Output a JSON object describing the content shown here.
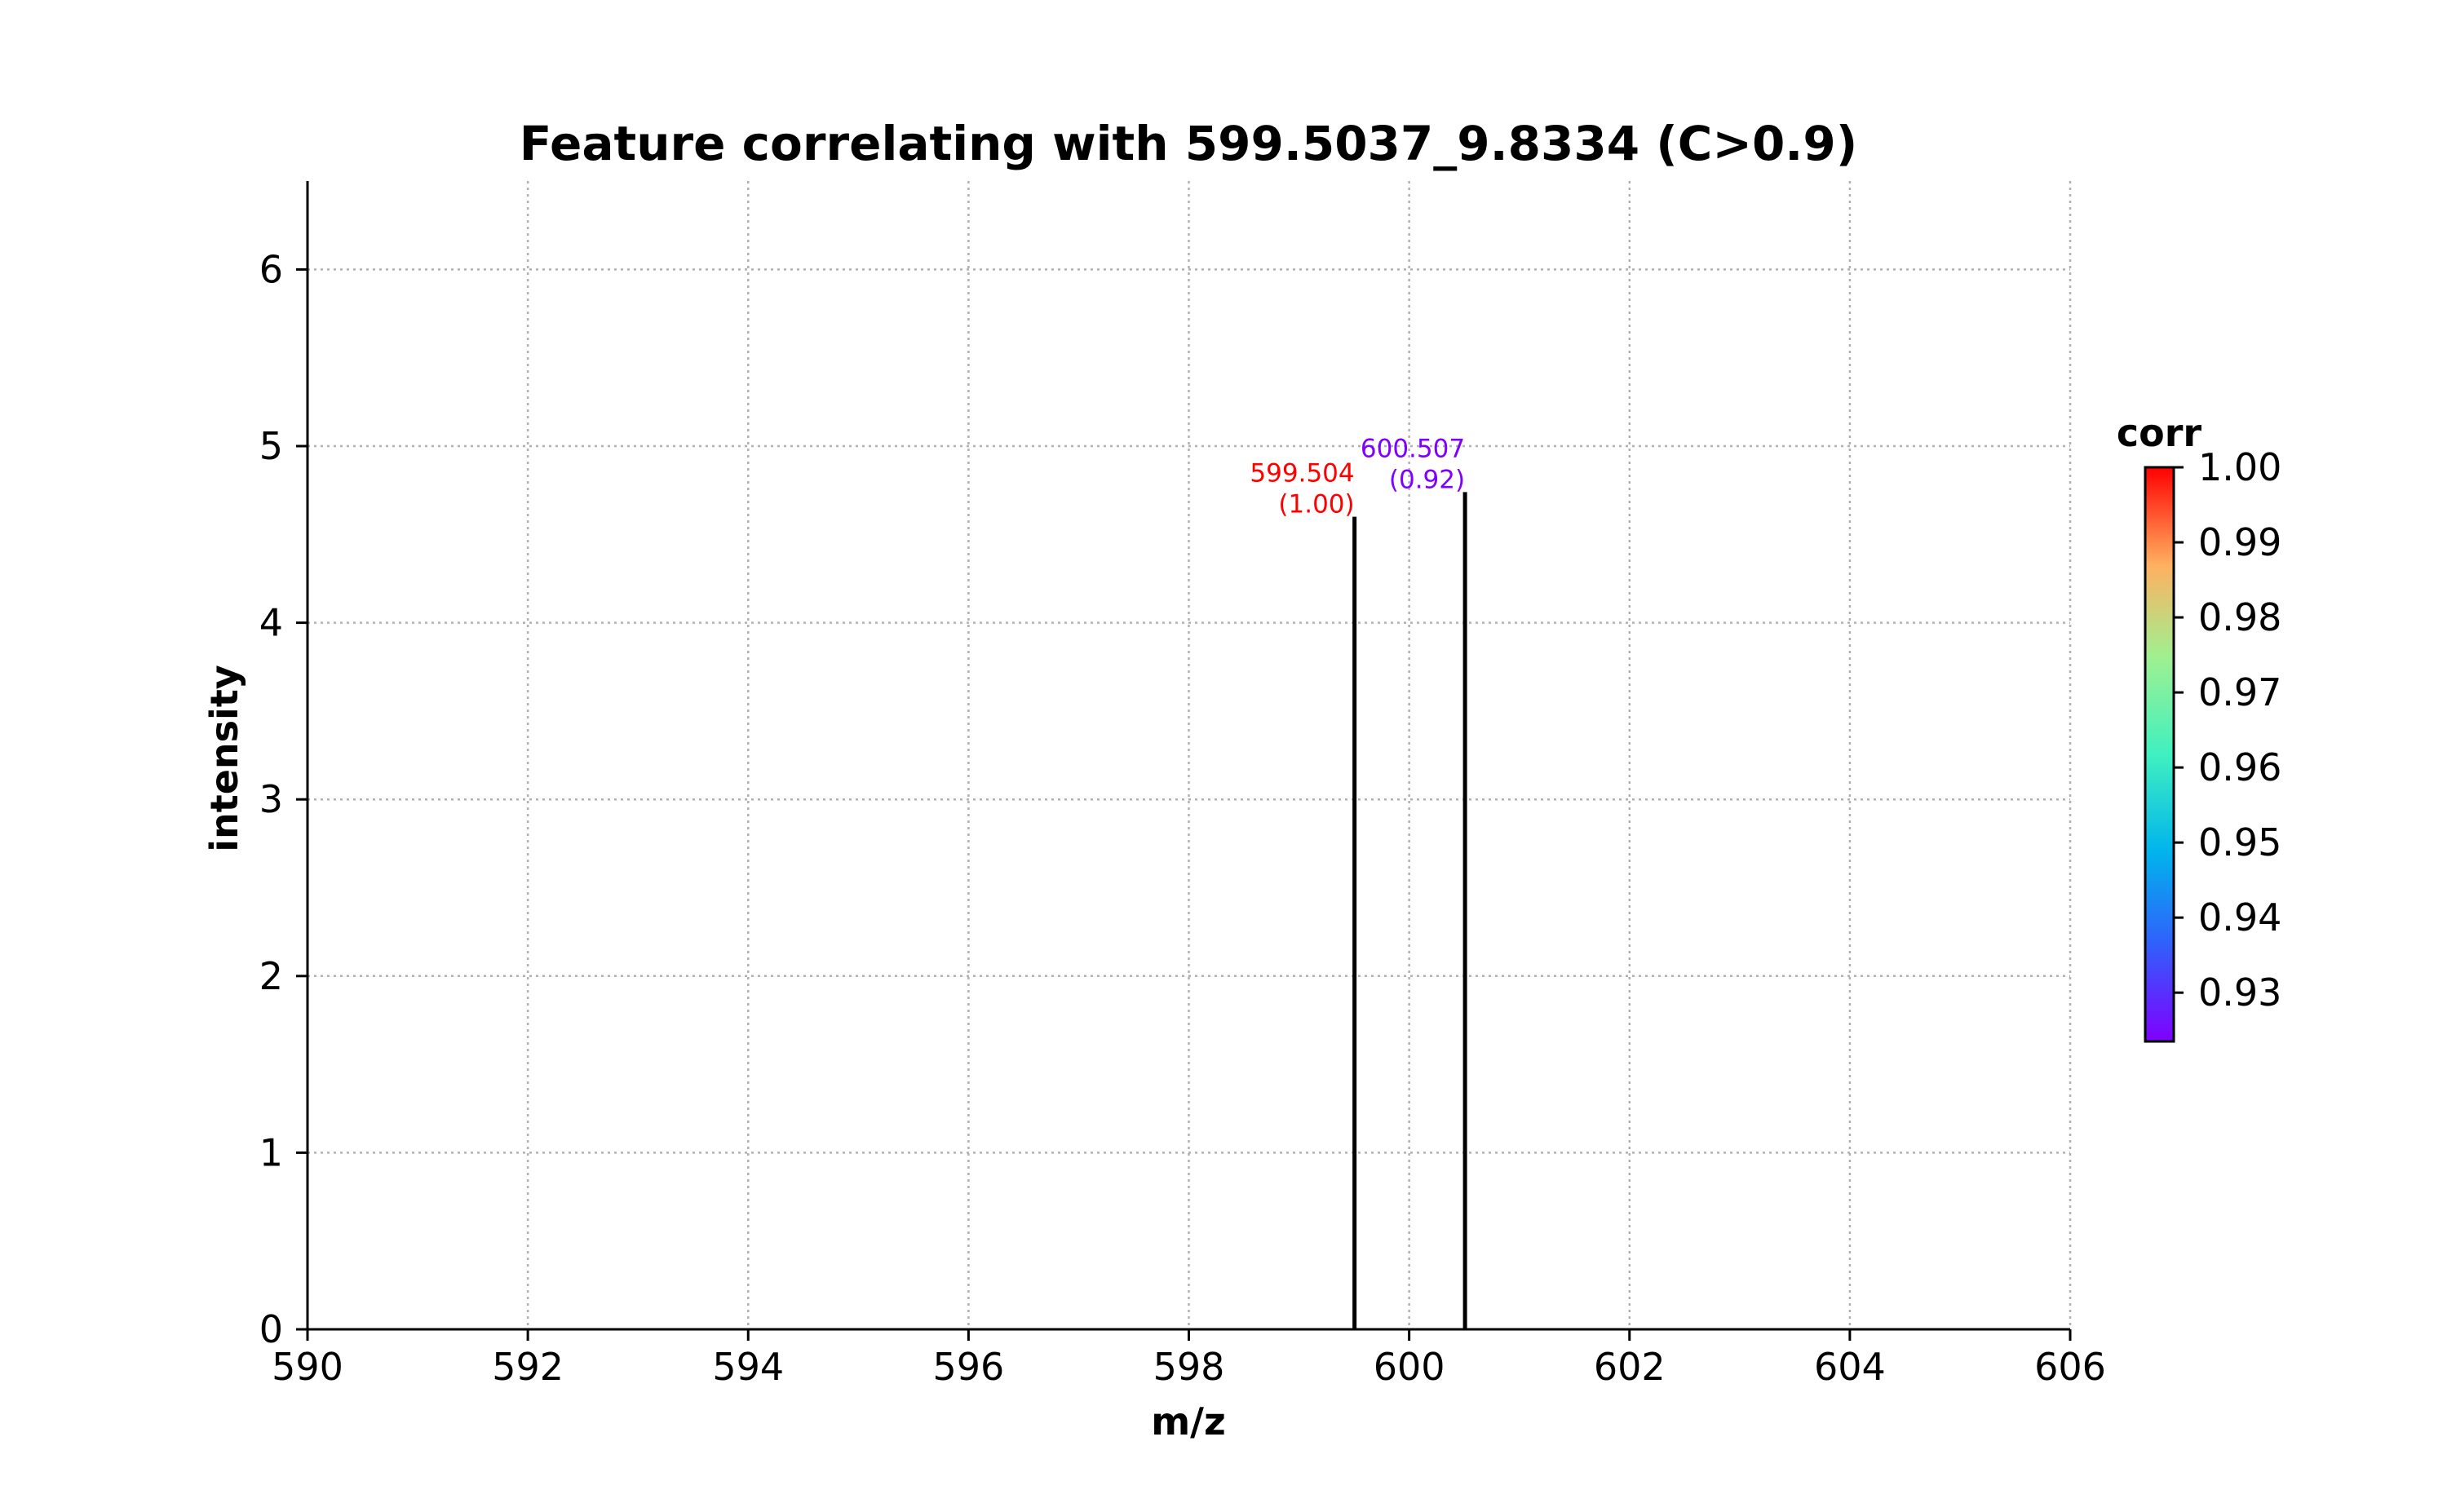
{
  "chart_data": {
    "type": "bar",
    "title": "Feature correlating with 599.5037_9.8334 (C>0.9)",
    "xlabel": "m/z",
    "ylabel": "intensity",
    "xlim": [
      590,
      606
    ],
    "ylim": [
      0,
      6.5
    ],
    "x_ticks": [
      "590",
      "592",
      "594",
      "596",
      "598",
      "600",
      "602",
      "604",
      "606"
    ],
    "y_ticks": [
      "0",
      "1",
      "2",
      "3",
      "4",
      "5",
      "6"
    ],
    "grid": true,
    "peaks": [
      {
        "mz": 599.504,
        "intensity": 4.6,
        "corr": 1.0,
        "label_mz": "599.504",
        "label_corr": "(1.00)",
        "color": "#ff0000"
      },
      {
        "mz": 600.507,
        "intensity": 4.74,
        "corr": 0.92,
        "label_mz": "600.507",
        "label_corr": "(0.92)",
        "color": "#7f00ff"
      }
    ],
    "colorbar": {
      "title": "corr",
      "range": [
        0.9235,
        1.0
      ],
      "ticks": [
        "0.93",
        "0.94",
        "0.95",
        "0.96",
        "0.97",
        "0.98",
        "0.99",
        "1.00"
      ],
      "colormap": "rainbow"
    }
  }
}
